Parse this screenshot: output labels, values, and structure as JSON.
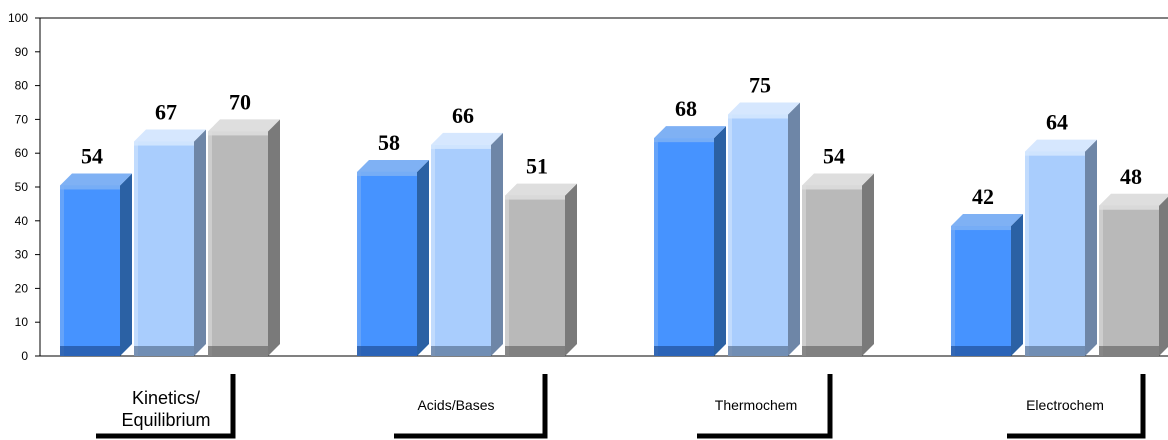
{
  "chart_data": {
    "type": "bar",
    "categories": [
      "Kinetics/\nEquilibrium",
      "Acids/Bases",
      "Thermochem",
      "Electrochem"
    ],
    "series": [
      {
        "values": [
          54,
          58,
          68,
          42
        ]
      },
      {
        "values": [
          67,
          66,
          75,
          64
        ]
      },
      {
        "values": [
          70,
          51,
          54,
          48
        ]
      }
    ],
    "title": "",
    "xlabel": "",
    "ylabel": "",
    "ylim": [
      0,
      100
    ],
    "yticks": [
      "0",
      "10",
      "20",
      "30",
      "40",
      "50",
      "60",
      "70",
      "80",
      "90",
      "100"
    ],
    "grid": false,
    "legend": "none",
    "bar_style": "3d",
    "colors": [
      "#4693ff",
      "#a9cdfd",
      "#b9b9b9"
    ]
  }
}
